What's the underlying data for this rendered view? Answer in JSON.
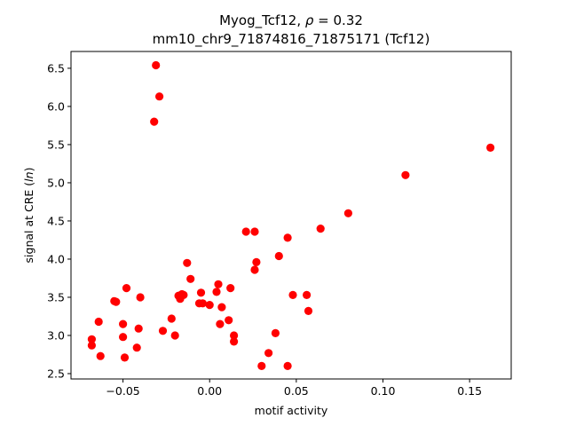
{
  "chart_data": {
    "type": "scatter",
    "title": {
      "line1_prefix": "Myog_Tcf12, ",
      "line1_rho": "ρ",
      "line1_suffix": " = 0.32",
      "line2": "mm10_chr9_71874816_71875171 (Tcf12)"
    },
    "xlabel": "motif activity",
    "ylabel": {
      "prefix": "signal at CRE (",
      "italic": "ln",
      "suffix": ")"
    },
    "xlim": [
      -0.08,
      0.174
    ],
    "ylim": [
      2.43,
      6.72
    ],
    "xticks": [
      {
        "value": -0.05,
        "label": "−0.05"
      },
      {
        "value": 0.0,
        "label": "0.00"
      },
      {
        "value": 0.05,
        "label": "0.05"
      },
      {
        "value": 0.1,
        "label": "0.10"
      },
      {
        "value": 0.15,
        "label": "0.15"
      }
    ],
    "yticks": [
      {
        "value": 2.5,
        "label": "2.5"
      },
      {
        "value": 3.0,
        "label": "3.0"
      },
      {
        "value": 3.5,
        "label": "3.5"
      },
      {
        "value": 4.0,
        "label": "4.0"
      },
      {
        "value": 4.5,
        "label": "4.5"
      },
      {
        "value": 5.0,
        "label": "5.0"
      },
      {
        "value": 5.5,
        "label": "5.5"
      },
      {
        "value": 6.0,
        "label": "6.0"
      },
      {
        "value": 6.5,
        "label": "6.5"
      }
    ],
    "grid": false,
    "marker_color": "#ff0000",
    "points": [
      {
        "x": -0.031,
        "y": 6.54
      },
      {
        "x": -0.029,
        "y": 6.13
      },
      {
        "x": -0.032,
        "y": 5.8
      },
      {
        "x": 0.162,
        "y": 5.46
      },
      {
        "x": 0.113,
        "y": 5.1
      },
      {
        "x": 0.08,
        "y": 4.6
      },
      {
        "x": 0.064,
        "y": 4.4
      },
      {
        "x": 0.021,
        "y": 4.36
      },
      {
        "x": 0.026,
        "y": 4.36
      },
      {
        "x": 0.045,
        "y": 4.28
      },
      {
        "x": 0.04,
        "y": 4.04
      },
      {
        "x": 0.027,
        "y": 3.96
      },
      {
        "x": -0.013,
        "y": 3.95
      },
      {
        "x": 0.026,
        "y": 3.86
      },
      {
        "x": -0.011,
        "y": 3.74
      },
      {
        "x": 0.005,
        "y": 3.67
      },
      {
        "x": -0.048,
        "y": 3.62
      },
      {
        "x": 0.012,
        "y": 3.62
      },
      {
        "x": 0.004,
        "y": 3.57
      },
      {
        "x": -0.005,
        "y": 3.56
      },
      {
        "x": -0.016,
        "y": 3.54
      },
      {
        "x": -0.018,
        "y": 3.52
      },
      {
        "x": -0.015,
        "y": 3.53
      },
      {
        "x": -0.017,
        "y": 3.48
      },
      {
        "x": -0.04,
        "y": 3.5
      },
      {
        "x": 0.048,
        "y": 3.53
      },
      {
        "x": 0.056,
        "y": 3.53
      },
      {
        "x": -0.055,
        "y": 3.45
      },
      {
        "x": -0.054,
        "y": 3.44
      },
      {
        "x": -0.006,
        "y": 3.42
      },
      {
        "x": -0.004,
        "y": 3.42
      },
      {
        "x": 0.0,
        "y": 3.4
      },
      {
        "x": 0.007,
        "y": 3.37
      },
      {
        "x": 0.057,
        "y": 3.32
      },
      {
        "x": -0.022,
        "y": 3.22
      },
      {
        "x": 0.011,
        "y": 3.2
      },
      {
        "x": -0.064,
        "y": 3.18
      },
      {
        "x": -0.05,
        "y": 3.15
      },
      {
        "x": 0.006,
        "y": 3.15
      },
      {
        "x": -0.041,
        "y": 3.09
      },
      {
        "x": -0.027,
        "y": 3.06
      },
      {
        "x": 0.038,
        "y": 3.03
      },
      {
        "x": -0.02,
        "y": 3.0
      },
      {
        "x": 0.014,
        "y": 3.0
      },
      {
        "x": -0.05,
        "y": 2.98
      },
      {
        "x": -0.068,
        "y": 2.95
      },
      {
        "x": 0.014,
        "y": 2.92
      },
      {
        "x": -0.068,
        "y": 2.87
      },
      {
        "x": -0.042,
        "y": 2.84
      },
      {
        "x": 0.034,
        "y": 2.77
      },
      {
        "x": -0.063,
        "y": 2.73
      },
      {
        "x": -0.049,
        "y": 2.71
      },
      {
        "x": 0.03,
        "y": 2.6
      },
      {
        "x": 0.045,
        "y": 2.6
      }
    ]
  }
}
